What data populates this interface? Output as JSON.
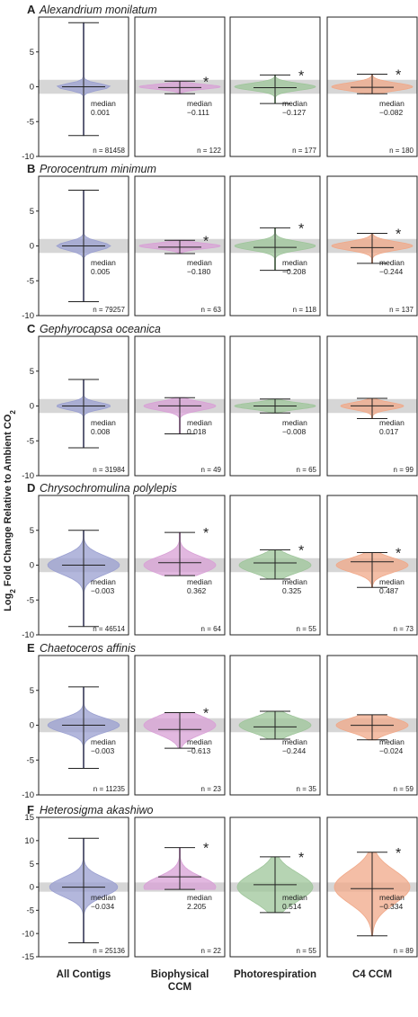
{
  "chart_data": {
    "type": "violin",
    "ylabel": "Log",
    "ylabel_sub": "2",
    "ylabel_mid": " Fold Change Relative to Ambient CO",
    "ylabel_sub2": "2",
    "categories": [
      "All Contigs",
      "Biophysical CCM",
      "Photorespiration",
      "C4 CCM"
    ],
    "category_lines": [
      [
        "All Contigs"
      ],
      [
        "Biophysical",
        "CCM"
      ],
      [
        "Photorespiration"
      ],
      [
        "C4 CCM"
      ]
    ],
    "category_colors": [
      "#9a9fd0",
      "#d8a0d6",
      "#9ec59a",
      "#f0a888"
    ],
    "median_label": "median",
    "significance_marker": "*",
    "n_prefix": "n = ",
    "panels": [
      {
        "letter": "A",
        "title": "Alexandrium monilatum",
        "ylim": [
          -10,
          10
        ],
        "yticks": [
          -10,
          -5,
          0,
          5
        ],
        "violins": [
          {
            "min": -7.0,
            "max": 9.2,
            "median": "0.001",
            "n": "81458",
            "sig": false,
            "halfwidth": 0.3,
            "spread": 0.45
          },
          {
            "min": -1.0,
            "max": 0.8,
            "median": "−0.111",
            "n": "122",
            "sig": true,
            "halfwidth": 0.45,
            "spread": 0.35
          },
          {
            "min": -2.4,
            "max": 1.7,
            "median": "−0.127",
            "n": "177",
            "sig": true,
            "halfwidth": 0.45,
            "spread": 0.5
          },
          {
            "min": -1.0,
            "max": 1.8,
            "median": "−0.082",
            "n": "180",
            "sig": true,
            "halfwidth": 0.45,
            "spread": 0.55
          }
        ]
      },
      {
        "letter": "B",
        "title": "Prorocentrum minimum",
        "ylim": [
          -10,
          10
        ],
        "yticks": [
          -10,
          -5,
          0,
          5
        ],
        "violins": [
          {
            "min": -8.0,
            "max": 8.0,
            "median": "0.005",
            "n": "79257",
            "sig": false,
            "halfwidth": 0.3,
            "spread": 0.6
          },
          {
            "min": -1.1,
            "max": 0.8,
            "median": "−0.180",
            "n": "63",
            "sig": true,
            "halfwidth": 0.45,
            "spread": 0.4
          },
          {
            "min": -3.5,
            "max": 2.6,
            "median": "−0.208",
            "n": "118",
            "sig": true,
            "halfwidth": 0.45,
            "spread": 0.6
          },
          {
            "min": -2.5,
            "max": 1.8,
            "median": "−0.244",
            "n": "137",
            "sig": true,
            "halfwidth": 0.45,
            "spread": 0.6
          }
        ]
      },
      {
        "letter": "C",
        "title": "Gephyrocapsa oceanica",
        "ylim": [
          -10,
          10
        ],
        "yticks": [
          -10,
          -5,
          0,
          5
        ],
        "violins": [
          {
            "min": -6.0,
            "max": 3.8,
            "median": "0.008",
            "n": "31984",
            "sig": false,
            "halfwidth": 0.3,
            "spread": 0.5
          },
          {
            "min": -4.0,
            "max": 1.2,
            "median": "0.018",
            "n": "49",
            "sig": false,
            "halfwidth": 0.4,
            "spread": 0.6
          },
          {
            "min": -1.0,
            "max": 1.0,
            "median": "−0.008",
            "n": "65",
            "sig": false,
            "halfwidth": 0.45,
            "spread": 0.45
          },
          {
            "min": -1.8,
            "max": 1.1,
            "median": "0.017",
            "n": "99",
            "sig": false,
            "halfwidth": 0.35,
            "spread": 0.5
          }
        ]
      },
      {
        "letter": "D",
        "title": "Chrysochromulina polylepis",
        "ylim": [
          -10,
          10
        ],
        "yticks": [
          -10,
          -5,
          0,
          5
        ],
        "violins": [
          {
            "min": -8.8,
            "max": 5.0,
            "median": "−0.003",
            "n": "46514",
            "sig": false,
            "halfwidth": 0.4,
            "spread": 1.3
          },
          {
            "min": -1.5,
            "max": 4.7,
            "median": "0.362",
            "n": "64",
            "sig": true,
            "halfwidth": 0.4,
            "spread": 1.2
          },
          {
            "min": -2.0,
            "max": 2.2,
            "median": "0.325",
            "n": "55",
            "sig": true,
            "halfwidth": 0.4,
            "spread": 1.1
          },
          {
            "min": -3.2,
            "max": 1.8,
            "median": "0.487",
            "n": "73",
            "sig": true,
            "halfwidth": 0.4,
            "spread": 1.0
          }
        ]
      },
      {
        "letter": "E",
        "title": "Chaetoceros affinis",
        "ylim": [
          -10,
          10
        ],
        "yticks": [
          -10,
          -5,
          0,
          5
        ],
        "violins": [
          {
            "min": -6.2,
            "max": 5.5,
            "median": "−0.003",
            "n": "11235",
            "sig": false,
            "halfwidth": 0.4,
            "spread": 1.0
          },
          {
            "min": -3.3,
            "max": 1.8,
            "median": "−0.613",
            "n": "23",
            "sig": true,
            "halfwidth": 0.4,
            "spread": 1.3
          },
          {
            "min": -2.0,
            "max": 2.0,
            "median": "−0.244",
            "n": "35",
            "sig": false,
            "halfwidth": 0.4,
            "spread": 1.1
          },
          {
            "min": -2.1,
            "max": 1.5,
            "median": "−0.024",
            "n": "59",
            "sig": false,
            "halfwidth": 0.4,
            "spread": 1.0
          }
        ]
      },
      {
        "letter": "F",
        "title": "Heterosigma akashiwo",
        "ylim": [
          -15,
          15
        ],
        "yticks": [
          -15,
          -10,
          -5,
          0,
          5,
          10,
          15
        ],
        "violins": [
          {
            "min": -12.0,
            "max": 10.5,
            "median": "−0.034",
            "n": "25136",
            "sig": false,
            "halfwidth": 0.38,
            "spread": 2.0
          },
          {
            "min": -0.5,
            "max": 8.5,
            "median": "2.205",
            "n": "22",
            "sig": true,
            "halfwidth": 0.4,
            "spread": 2.2
          },
          {
            "min": -5.5,
            "max": 6.5,
            "median": "0.514",
            "n": "55",
            "sig": true,
            "halfwidth": 0.42,
            "spread": 3.0
          },
          {
            "min": -10.5,
            "max": 7.5,
            "median": "−0.334",
            "n": "89",
            "sig": true,
            "halfwidth": 0.42,
            "spread": 3.5
          }
        ]
      }
    ]
  }
}
